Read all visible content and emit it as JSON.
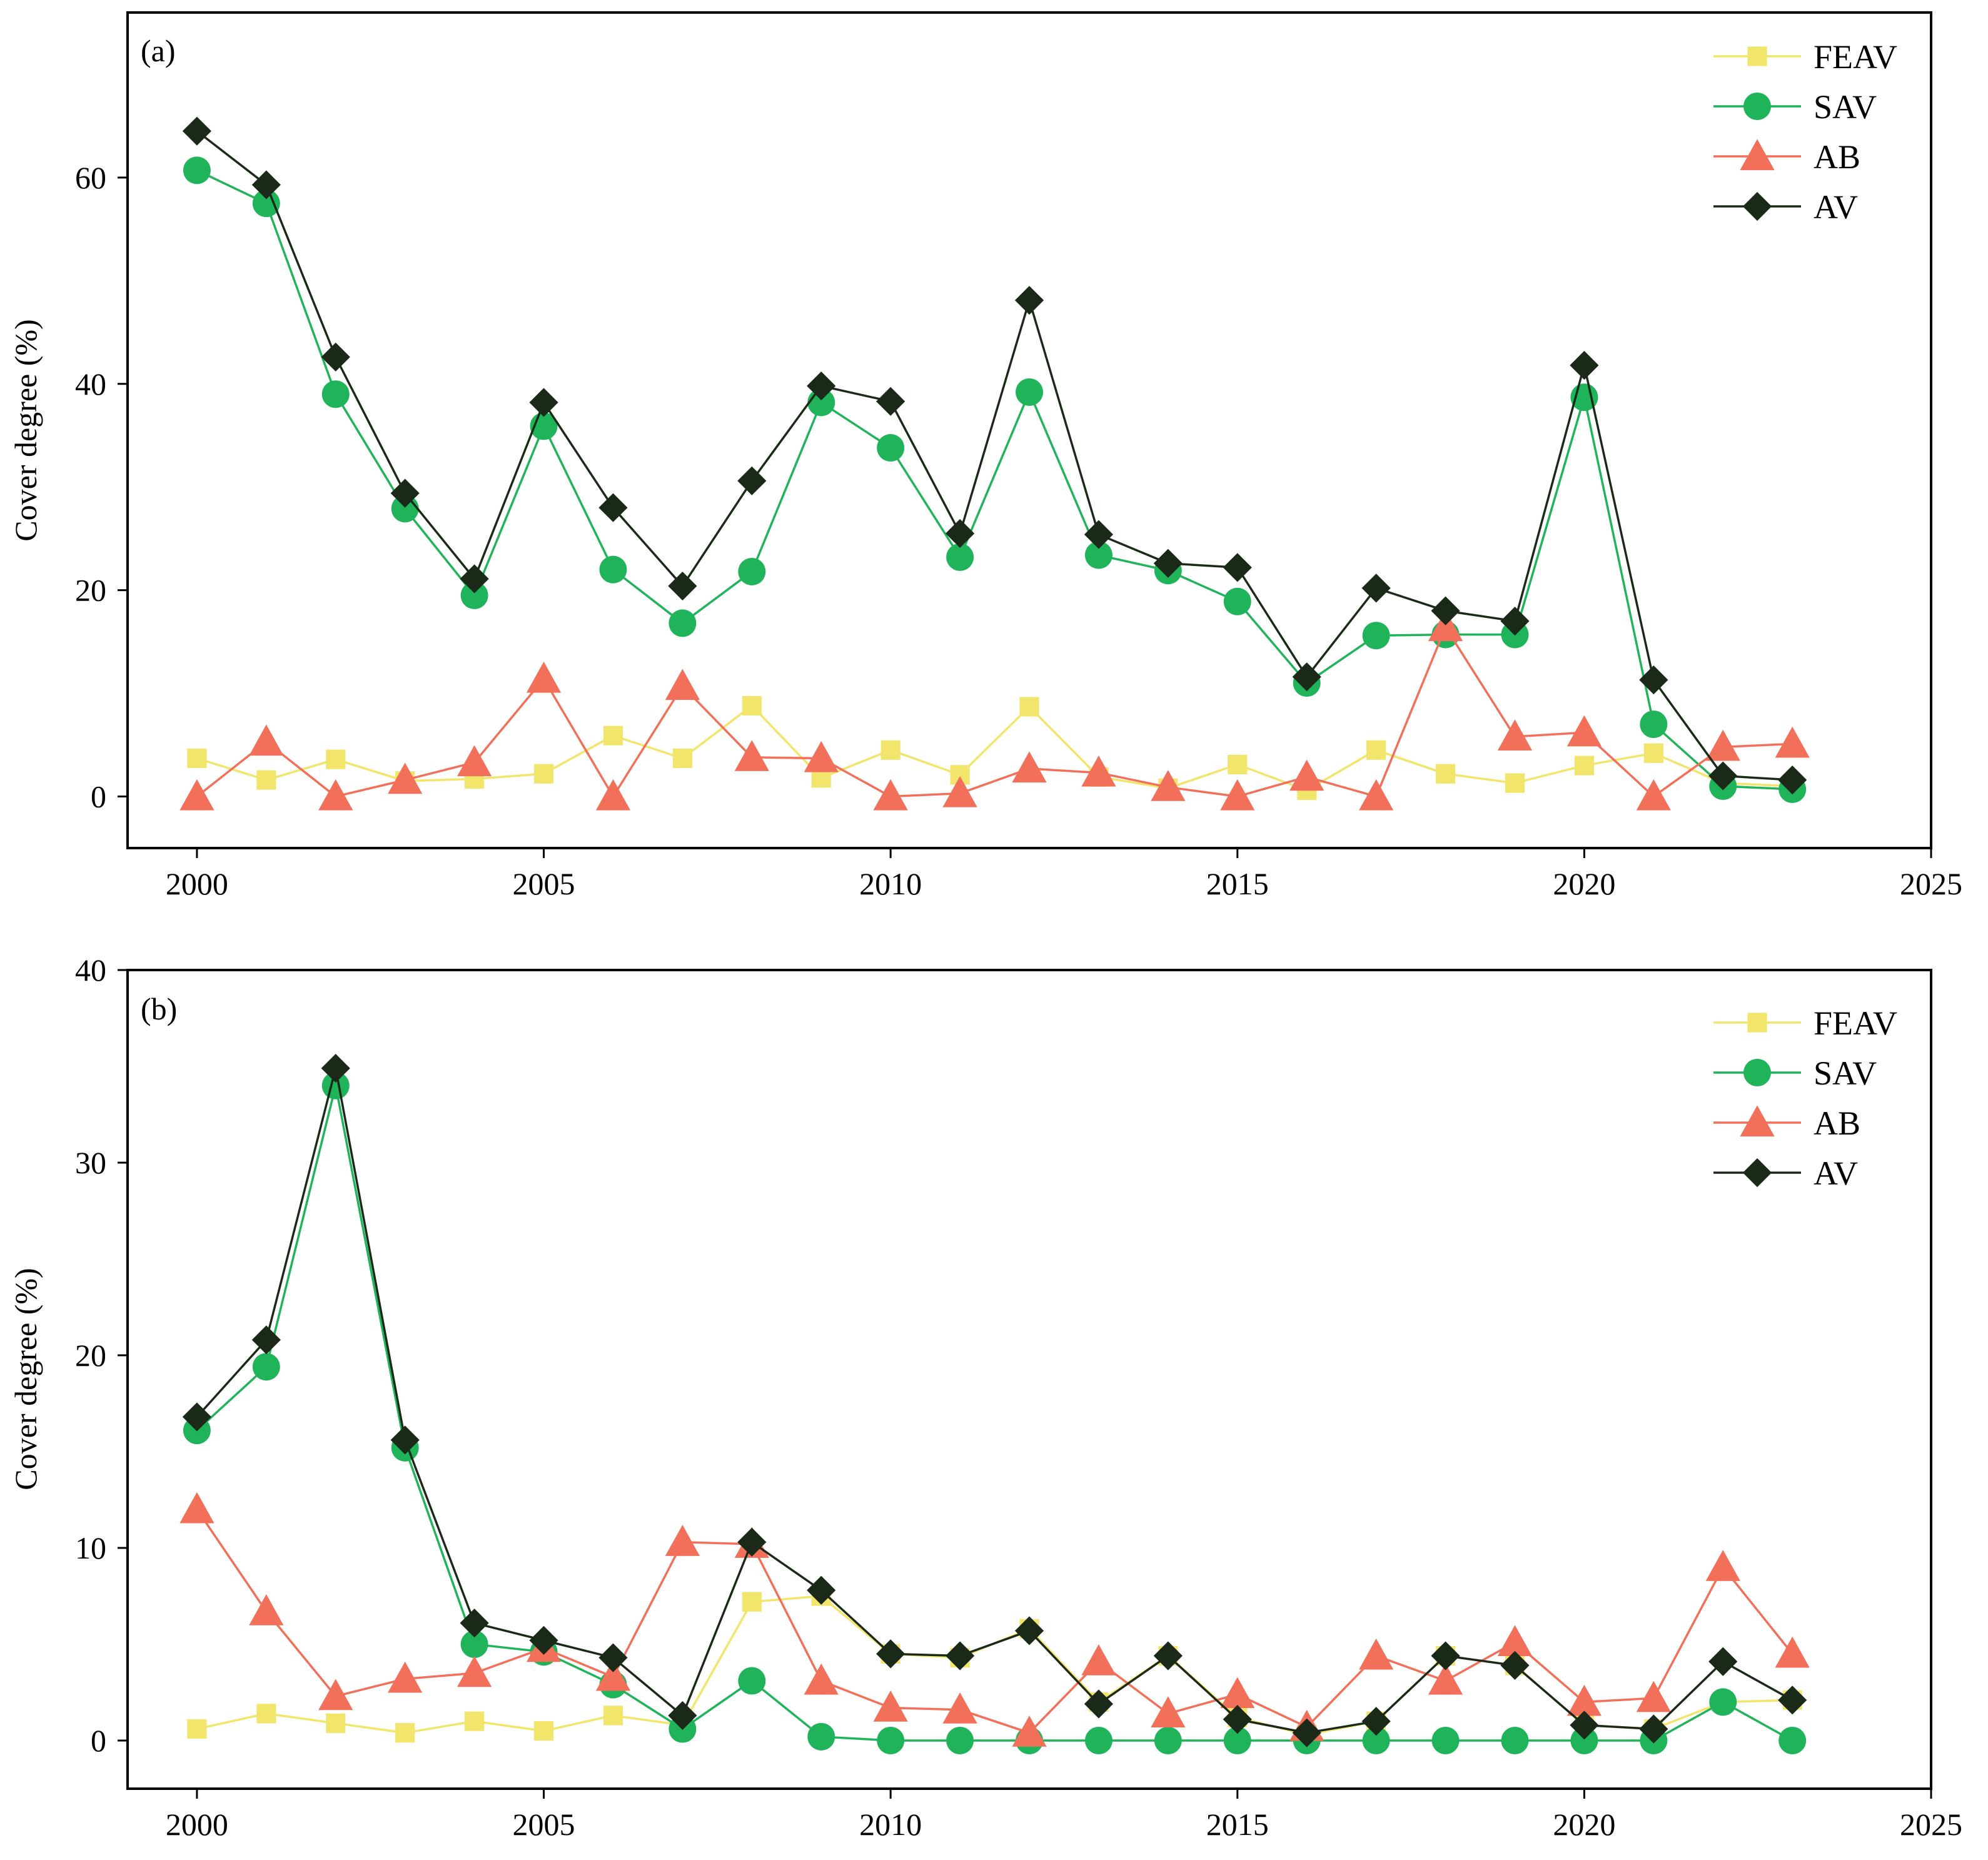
{
  "chart_data": [
    {
      "type": "line",
      "panel_label": "(a)",
      "xlabel": "",
      "ylabel": "Cover degree (%)",
      "xlim": [
        1999.0,
        2025.0
      ],
      "ylim": [
        -5,
        76
      ],
      "xticks": [
        2000,
        2005,
        2010,
        2015,
        2020,
        2025
      ],
      "xtick_labels": [
        "2000",
        "2005",
        "2010",
        "2015",
        "2020",
        "2025"
      ],
      "yticks": [
        0,
        20,
        40,
        60
      ],
      "ytick_labels": [
        "0",
        "20",
        "40",
        "60"
      ],
      "legend_position": "top-right",
      "x": [
        2000,
        2001,
        2002,
        2003,
        2004,
        2005,
        2006,
        2007,
        2008,
        2009,
        2010,
        2011,
        2012,
        2013,
        2014,
        2015,
        2016,
        2017,
        2018,
        2019,
        2020,
        2021,
        2022,
        2023
      ],
      "series": [
        {
          "name": "FEAV",
          "color": "#f2e56b",
          "marker": "square",
          "values": [
            3.7,
            1.6,
            3.6,
            1.5,
            1.7,
            2.2,
            5.9,
            3.7,
            8.8,
            1.8,
            4.5,
            2.1,
            8.7,
            1.9,
            0.8,
            3.1,
            0.6,
            4.5,
            2.2,
            1.3,
            3.0,
            4.2,
            1.3,
            1.0
          ]
        },
        {
          "name": "SAV",
          "color": "#1fb45a",
          "marker": "circle",
          "values": [
            60.7,
            57.5,
            39.0,
            27.9,
            19.5,
            35.9,
            22.0,
            16.8,
            21.8,
            38.2,
            33.8,
            23.2,
            39.2,
            23.4,
            21.9,
            18.9,
            11.0,
            15.6,
            15.7,
            15.7,
            38.7,
            7.0,
            1.0,
            0.7
          ]
        },
        {
          "name": "AB",
          "color": "#f2705a",
          "marker": "triangle",
          "values": [
            0.0,
            5.3,
            0.0,
            1.6,
            3.3,
            11.4,
            0.0,
            10.7,
            3.8,
            3.7,
            0.0,
            0.3,
            2.7,
            2.3,
            0.9,
            0.0,
            1.9,
            0.0,
            16.4,
            5.8,
            6.2,
            0.0,
            4.8,
            5.1
          ]
        },
        {
          "name": "AV",
          "color": "#1b2a18",
          "marker": "diamond",
          "values": [
            64.5,
            59.3,
            42.6,
            29.4,
            21.1,
            38.2,
            28.0,
            20.4,
            30.6,
            39.8,
            38.3,
            25.5,
            48.1,
            25.4,
            22.6,
            22.2,
            11.6,
            20.2,
            18.0,
            17.0,
            41.8,
            11.3,
            2.0,
            1.6
          ]
        }
      ]
    },
    {
      "type": "line",
      "panel_label": "(b)",
      "xlabel": "",
      "ylabel": "Cover degree (%)",
      "xlim": [
        1999.0,
        2025.0
      ],
      "ylim": [
        -2.5,
        40
      ],
      "xticks": [
        2000,
        2005,
        2010,
        2015,
        2020,
        2025
      ],
      "xtick_labels": [
        "2000",
        "2005",
        "2010",
        "2015",
        "2020",
        "2025"
      ],
      "yticks": [
        0,
        10,
        20,
        30,
        40
      ],
      "ytick_labels": [
        "0",
        "10",
        "20",
        "30",
        "40"
      ],
      "legend_position": "top-right",
      "x": [
        2000,
        2001,
        2002,
        2003,
        2004,
        2005,
        2006,
        2007,
        2008,
        2009,
        2010,
        2011,
        2012,
        2013,
        2014,
        2015,
        2016,
        2017,
        2018,
        2019,
        2020,
        2021,
        2022,
        2023
      ],
      "series": [
        {
          "name": "FEAV",
          "color": "#f2e56b",
          "marker": "square",
          "values": [
            0.6,
            1.4,
            0.9,
            0.4,
            1.0,
            0.5,
            1.3,
            0.8,
            7.2,
            7.5,
            4.5,
            4.3,
            5.8,
            2.0,
            4.4,
            1.2,
            0.3,
            1.0,
            4.4,
            3.9,
            0.8,
            0.6,
            2.0,
            2.1
          ]
        },
        {
          "name": "SAV",
          "color": "#1fb45a",
          "marker": "circle",
          "values": [
            16.1,
            19.4,
            34.0,
            15.2,
            5.0,
            4.6,
            2.9,
            0.6,
            3.1,
            0.2,
            0.0,
            0.0,
            0.0,
            0.0,
            0.0,
            0.0,
            0.0,
            0.0,
            0.0,
            0.0,
            0.0,
            0.0,
            2.0,
            0.0
          ]
        },
        {
          "name": "AB",
          "color": "#f2705a",
          "marker": "triangle",
          "values": [
            12.0,
            6.7,
            2.3,
            3.2,
            3.5,
            4.8,
            3.3,
            10.3,
            10.2,
            3.1,
            1.7,
            1.6,
            0.4,
            4.1,
            1.4,
            2.4,
            0.7,
            4.4,
            3.1,
            5.1,
            2.0,
            2.2,
            9.0,
            4.5
          ]
        },
        {
          "name": "AV",
          "color": "#1b2a18",
          "marker": "diamond",
          "values": [
            16.8,
            20.8,
            34.9,
            15.6,
            6.1,
            5.2,
            4.3,
            1.3,
            10.3,
            7.8,
            4.5,
            4.4,
            5.7,
            1.9,
            4.4,
            1.1,
            0.4,
            1.0,
            4.4,
            3.9,
            0.8,
            0.6,
            4.1,
            2.1
          ]
        }
      ]
    }
  ]
}
